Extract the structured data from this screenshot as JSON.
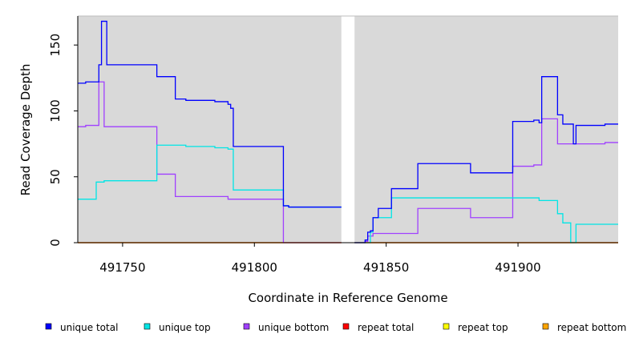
{
  "chart_data": {
    "type": "line",
    "step": true,
    "xlabel": "Coordinate in Reference Genome",
    "ylabel": "Read Coverage Depth",
    "xlim": [
      491733,
      491938
    ],
    "ylim": [
      0,
      172
    ],
    "x_ticks": [
      491750,
      491800,
      491850,
      491900
    ],
    "y_ticks": [
      0,
      50,
      100,
      150
    ],
    "gap": [
      491833,
      491838
    ],
    "series": [
      {
        "name": "unique total",
        "color": "#0000ff",
        "points": [
          [
            491733,
            121
          ],
          [
            491736,
            122
          ],
          [
            491741,
            135
          ],
          [
            491742,
            168
          ],
          [
            491744,
            135
          ],
          [
            491763,
            126
          ],
          [
            491770,
            109
          ],
          [
            491774,
            108
          ],
          [
            491785,
            107
          ],
          [
            491790,
            105
          ],
          [
            491791,
            102
          ],
          [
            491792,
            73
          ],
          [
            491811,
            73
          ],
          [
            491811,
            28
          ],
          [
            491813,
            27
          ],
          [
            491833,
            27
          ],
          [
            491833,
            null
          ],
          [
            491838,
            0
          ],
          [
            491842,
            2
          ],
          [
            491843,
            8
          ],
          [
            491844,
            9
          ],
          [
            491845,
            19
          ],
          [
            491847,
            26
          ],
          [
            491852,
            41
          ],
          [
            491862,
            60
          ],
          [
            491882,
            53
          ],
          [
            491898,
            92
          ],
          [
            491906,
            93
          ],
          [
            491908,
            91
          ],
          [
            491909,
            126
          ],
          [
            491915,
            97
          ],
          [
            491917,
            90
          ],
          [
            491921,
            75
          ],
          [
            491922,
            89
          ],
          [
            491933,
            90
          ],
          [
            491938,
            90
          ]
        ]
      },
      {
        "name": "unique top",
        "color": "#00e5e5",
        "points": [
          [
            491733,
            33
          ],
          [
            491740,
            46
          ],
          [
            491743,
            47
          ],
          [
            491763,
            74
          ],
          [
            491774,
            73
          ],
          [
            491785,
            72
          ],
          [
            491790,
            71
          ],
          [
            491792,
            40
          ],
          [
            491811,
            40
          ],
          [
            491811,
            28
          ],
          [
            491813,
            27
          ],
          [
            491833,
            27
          ],
          [
            491833,
            null
          ],
          [
            491838,
            0
          ],
          [
            491844,
            8
          ],
          [
            491845,
            19
          ],
          [
            491852,
            34
          ],
          [
            491908,
            32
          ],
          [
            491915,
            22
          ],
          [
            491917,
            15
          ],
          [
            491920,
            0
          ],
          [
            491922,
            14
          ],
          [
            491938,
            14
          ]
        ]
      },
      {
        "name": "unique bottom",
        "color": "#a040ff",
        "points": [
          [
            491733,
            88
          ],
          [
            491736,
            89
          ],
          [
            491741,
            122
          ],
          [
            491743,
            88
          ],
          [
            491763,
            52
          ],
          [
            491770,
            35
          ],
          [
            491790,
            33
          ],
          [
            491811,
            33
          ],
          [
            491811,
            0
          ],
          [
            491833,
            0
          ],
          [
            491833,
            null
          ],
          [
            491838,
            0
          ],
          [
            491842,
            1
          ],
          [
            491843,
            5
          ],
          [
            491845,
            7
          ],
          [
            491862,
            26
          ],
          [
            491882,
            19
          ],
          [
            491898,
            58
          ],
          [
            491906,
            59
          ],
          [
            491909,
            94
          ],
          [
            491915,
            75
          ],
          [
            491933,
            76
          ],
          [
            491938,
            76
          ]
        ]
      },
      {
        "name": "repeat total",
        "color": "#ff0000",
        "points": [
          [
            491733,
            0
          ],
          [
            491833,
            0
          ],
          [
            491833,
            null
          ],
          [
            491838,
            0
          ],
          [
            491938,
            0
          ]
        ]
      },
      {
        "name": "repeat top",
        "color": "#ffff00",
        "points": [
          [
            491733,
            0
          ],
          [
            491833,
            0
          ],
          [
            491833,
            null
          ],
          [
            491838,
            0
          ],
          [
            491938,
            0
          ]
        ]
      },
      {
        "name": "repeat bottom",
        "color": "#ffa500",
        "points": [
          [
            491733,
            0
          ],
          [
            491833,
            0
          ],
          [
            491833,
            null
          ],
          [
            491838,
            0
          ],
          [
            491938,
            0
          ]
        ]
      }
    ],
    "panel_color": "#d9d9d9",
    "legend_position": "bottom"
  }
}
